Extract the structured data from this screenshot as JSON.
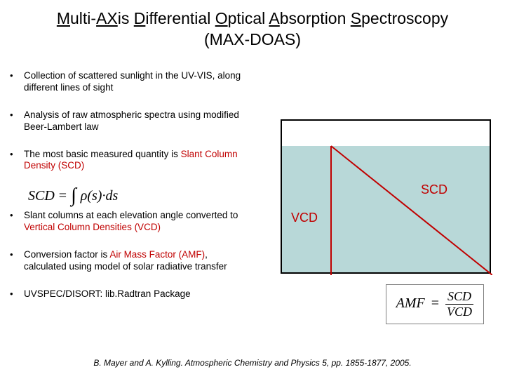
{
  "title": {
    "parts": [
      {
        "text": "M",
        "ul": true
      },
      {
        "text": "ulti-",
        "ul": false
      },
      {
        "text": "AX",
        "ul": true
      },
      {
        "text": "is ",
        "ul": false
      },
      {
        "text": "D",
        "ul": true
      },
      {
        "text": "ifferential ",
        "ul": false
      },
      {
        "text": "O",
        "ul": true
      },
      {
        "text": "ptical ",
        "ul": false
      },
      {
        "text": "A",
        "ul": true
      },
      {
        "text": "bsorption ",
        "ul": false
      },
      {
        "text": "S",
        "ul": true
      },
      {
        "text": "pectroscopy",
        "ul": false
      }
    ],
    "line2": "(MAX-DOAS)"
  },
  "bullets": [
    {
      "pre": "Collection of scattered sunlight in the UV-VIS, along different lines of sight",
      "red": "",
      "post": ""
    },
    {
      "pre": "Analysis of raw atmospheric spectra using modified Beer-Lambert law",
      "red": "",
      "post": ""
    },
    {
      "pre": "The most basic measured quantity is ",
      "red": "Slant Column Density (SCD)",
      "post": ""
    },
    {
      "pre": "Slant columns at each elevation angle converted to ",
      "red": "Vertical Column Densities (VCD)",
      "post": ""
    },
    {
      "pre": "Conversion factor is ",
      "red": "Air Mass Factor (AMF)",
      "post": ", calculated using model of solar radiative transfer"
    },
    {
      "pre": "UVSPEC/DISORT: lib.Radtran Package",
      "red": "",
      "post": ""
    }
  ],
  "equation1": {
    "lhs": "SCD",
    "eq": "=",
    "int_symbol": "∫",
    "integrand": "ρ(s)·ds"
  },
  "diagram": {
    "sky_color": "#b8d8d8",
    "scd_color": "#c00000",
    "vcd_color": "#c00000",
    "label_vcd": "VCD",
    "label_scd": "SCD"
  },
  "amf_equation": {
    "lhs": "AMF",
    "eq": "=",
    "num": "SCD",
    "den": "VCD"
  },
  "citation": "B. Mayer and A. Kylling. Atmospheric Chemistry and Physics 5, pp. 1855-1877, 2005."
}
